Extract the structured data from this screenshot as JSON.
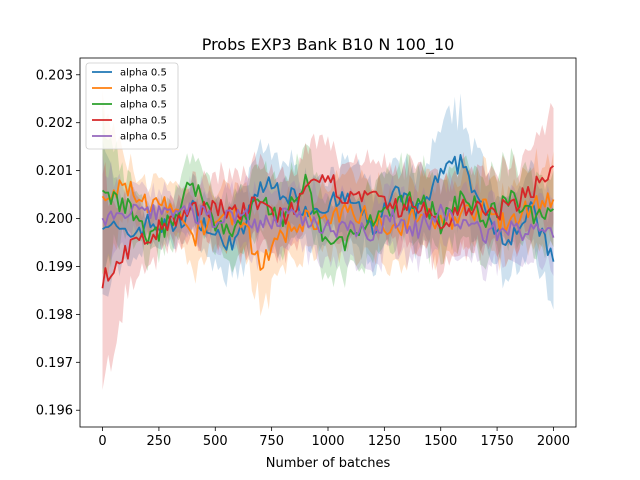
{
  "chart_data": {
    "type": "line",
    "title": "Probs EXP3 Bank B10 N 100_10",
    "xlabel": "Number of batches",
    "ylabel": "",
    "xlim": [
      -100,
      2100
    ],
    "ylim": [
      0.19565,
      0.20335
    ],
    "xticks": [
      0,
      250,
      500,
      750,
      1000,
      1250,
      1500,
      1750,
      2000
    ],
    "xtick_labels": [
      "0",
      "250",
      "500",
      "750",
      "1000",
      "1250",
      "1500",
      "1750",
      "2000"
    ],
    "yticks": [
      0.196,
      0.197,
      0.198,
      0.199,
      0.2,
      0.201,
      0.202,
      0.203
    ],
    "ytick_labels": [
      "0.196",
      "0.197",
      "0.198",
      "0.199",
      "0.200",
      "0.201",
      "0.202",
      "0.203"
    ],
    "legend_position": "top-left",
    "series": [
      {
        "name": "alpha 0.5",
        "color": "#1f77b4",
        "x": [
          0,
          100,
          200,
          300,
          400,
          500,
          600,
          700,
          800,
          900,
          1000,
          1100,
          1200,
          1300,
          1400,
          1500,
          1600,
          1700,
          1800,
          1900,
          2000
        ],
        "values": [
          0.2,
          0.1996,
          0.1999,
          0.1998,
          0.2002,
          0.1996,
          0.1995,
          0.2007,
          0.2006,
          0.2002,
          0.2003,
          0.2004,
          0.1998,
          0.2005,
          0.2001,
          0.2009,
          0.2012,
          0.2,
          0.1996,
          0.2002,
          0.1991
        ],
        "band": [
          0.0016,
          0.0006,
          0.0004,
          0.0004,
          0.0005,
          0.0007,
          0.0008,
          0.0008,
          0.0007,
          0.0007,
          0.0007,
          0.0008,
          0.0008,
          0.0008,
          0.0008,
          0.001,
          0.0011,
          0.0009,
          0.0008,
          0.0008,
          0.001
        ]
      },
      {
        "name": "alpha 0.5",
        "color": "#ff7f0e",
        "x": [
          0,
          100,
          200,
          300,
          400,
          500,
          600,
          700,
          800,
          900,
          1000,
          1100,
          1200,
          1300,
          1400,
          1500,
          1600,
          1700,
          1800,
          1900,
          2000
        ],
        "values": [
          0.2003,
          0.2007,
          0.2003,
          0.2002,
          0.1996,
          0.2,
          0.2001,
          0.1991,
          0.1996,
          0.2,
          0.1999,
          0.2002,
          0.2,
          0.1998,
          0.2001,
          0.1999,
          0.2001,
          0.2002,
          0.1998,
          0.2003,
          0.2004
        ],
        "band": [
          0.002,
          0.0006,
          0.0005,
          0.0005,
          0.0008,
          0.0006,
          0.0007,
          0.0009,
          0.0008,
          0.0007,
          0.0007,
          0.0008,
          0.0008,
          0.0008,
          0.0008,
          0.0008,
          0.0008,
          0.0008,
          0.0008,
          0.0008,
          0.001
        ]
      },
      {
        "name": "alpha 0.5",
        "color": "#2ca02c",
        "x": [
          0,
          100,
          200,
          300,
          400,
          500,
          600,
          700,
          800,
          900,
          1000,
          1100,
          1200,
          1300,
          1400,
          1500,
          1600,
          1700,
          1800,
          1900,
          2000
        ],
        "values": [
          0.2004,
          0.2003,
          0.1996,
          0.1999,
          0.2008,
          0.1999,
          0.1998,
          0.2004,
          0.2,
          0.2007,
          0.1994,
          0.1996,
          0.1999,
          0.2002,
          0.2005,
          0.1999,
          0.2005,
          0.2,
          0.2004,
          0.2001,
          0.2002
        ],
        "band": [
          0.0017,
          0.0006,
          0.0005,
          0.0005,
          0.0006,
          0.0006,
          0.0007,
          0.0008,
          0.0008,
          0.0008,
          0.0008,
          0.0008,
          0.0008,
          0.0008,
          0.0008,
          0.0008,
          0.0009,
          0.0008,
          0.0008,
          0.0009,
          0.0008
        ]
      },
      {
        "name": "alpha 0.5",
        "color": "#d62728",
        "x": [
          0,
          100,
          200,
          300,
          400,
          500,
          600,
          700,
          800,
          900,
          1000,
          1100,
          1200,
          1300,
          1400,
          1500,
          1600,
          1700,
          1800,
          1900,
          2000
        ],
        "values": [
          0.1987,
          0.1993,
          0.1996,
          0.1999,
          0.2001,
          0.2003,
          0.2001,
          0.2003,
          0.2,
          0.2005,
          0.2008,
          0.2004,
          0.2004,
          0.2002,
          0.2003,
          0.1998,
          0.2003,
          0.2001,
          0.2002,
          0.2006,
          0.2011
        ],
        "band": [
          0.0022,
          0.0011,
          0.0006,
          0.0005,
          0.0006,
          0.0007,
          0.0008,
          0.0009,
          0.0008,
          0.0008,
          0.0009,
          0.0008,
          0.0008,
          0.0008,
          0.0009,
          0.001,
          0.0009,
          0.0008,
          0.0008,
          0.0009,
          0.0012
        ]
      },
      {
        "name": "alpha 0.5",
        "color": "#9467bd",
        "x": [
          0,
          100,
          200,
          300,
          400,
          500,
          600,
          700,
          800,
          900,
          1000,
          1100,
          1200,
          1300,
          1400,
          1500,
          1600,
          1700,
          1800,
          1900,
          2000
        ],
        "values": [
          0.1999,
          0.2001,
          0.2001,
          0.2002,
          0.2001,
          0.2,
          0.2001,
          0.1999,
          0.2,
          0.2,
          0.1998,
          0.1999,
          0.1997,
          0.2,
          0.1998,
          0.2001,
          0.1999,
          0.1997,
          0.1998,
          0.1997,
          0.1996
        ],
        "band": [
          0.0012,
          0.0006,
          0.0005,
          0.0005,
          0.0005,
          0.0006,
          0.0006,
          0.0007,
          0.0007,
          0.0007,
          0.0007,
          0.0007,
          0.0007,
          0.0007,
          0.0007,
          0.0007,
          0.0007,
          0.0007,
          0.0007,
          0.0007,
          0.0008
        ]
      }
    ]
  }
}
